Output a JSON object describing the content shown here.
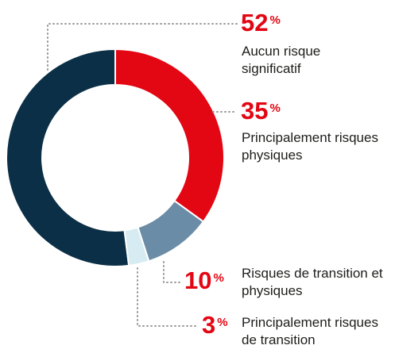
{
  "chart_data": {
    "type": "donut",
    "categories": [
      "Aucun risque significatif",
      "Principalement risques physiques",
      "Risques de transition et physiques",
      "Principalement risques de transition"
    ],
    "values": [
      52,
      35,
      10,
      3
    ],
    "value_unit": "%",
    "colors": [
      "#0b2f46",
      "#e30613",
      "#6b8ca6",
      "#d7ebf3"
    ]
  }
}
